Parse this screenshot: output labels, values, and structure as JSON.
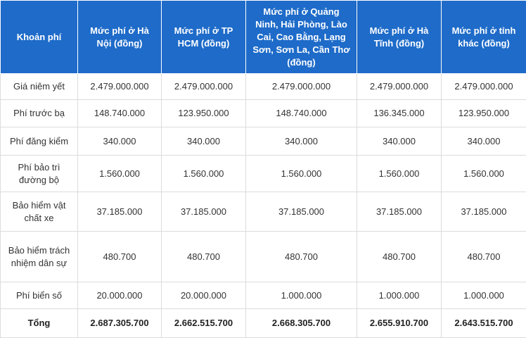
{
  "table": {
    "header": [
      "Khoản phí",
      "Mức phí ở Hà Nội (đồng)",
      "Mức phí ở TP HCM (đồng)",
      "Mức phí ở Quảng Ninh, Hải Phòng, Lào Cai, Cao Bằng, Lạng Sơn, Sơn La, Cần Thơ (đồng)",
      "Mức phí ở Hà Tĩnh (đồng)",
      "Mức phí ở tỉnh khác (đồng)"
    ],
    "rows": [
      [
        "Giá niêm yết",
        "2.479.000.000",
        "2.479.000.000",
        "2.479.000.000",
        "2.479.000.000",
        "2.479.000.000"
      ],
      [
        "Phí trước bạ",
        "148.740.000",
        "123.950.000",
        "148.740.000",
        "136.345.000",
        "123.950.000"
      ],
      [
        "Phí đăng kiểm",
        "340.000",
        "340.000",
        "340.000",
        "340.000",
        "340.000"
      ],
      [
        "Phí bảo trì đường bộ",
        "1.560.000",
        "1.560.000",
        "1.560.000",
        "1.560.000",
        "1.560.000"
      ],
      [
        "Bảo hiểm vật chất xe",
        "37.185.000",
        "37.185.000",
        "37.185.000",
        "37.185.000",
        "37.185.000"
      ],
      [
        "Bảo hiểm trách nhiệm dân sự",
        "480.700",
        "480.700",
        "480.700",
        "480.700",
        "480.700"
      ],
      [
        "Phí biển số",
        "20.000.000",
        "20.000.000",
        "1.000.000",
        "1.000.000",
        "1.000.000"
      ],
      [
        "Tổng",
        "2.687.305.700",
        "2.662.515.700",
        "2.668.305.700",
        "2.655.910.700",
        "2.643.515.700"
      ]
    ]
  }
}
